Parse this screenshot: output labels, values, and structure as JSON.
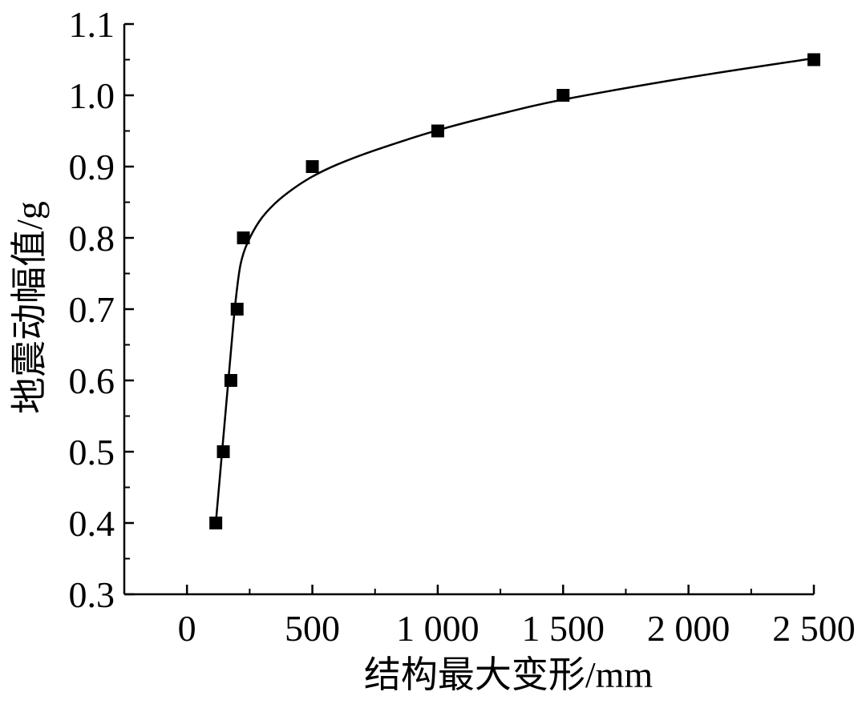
{
  "chart_data": {
    "type": "scatter",
    "title": "",
    "xlabel": "结构最大变形/mm",
    "ylabel": "地震动幅值/g",
    "xlim": [
      -250,
      2500
    ],
    "ylim": [
      0.3,
      1.1
    ],
    "xticks": [
      0,
      500,
      1000,
      1500,
      2000,
      2500
    ],
    "xtick_labels": [
      "0",
      "500",
      "1 000",
      "1 500",
      "2 000",
      "2 500"
    ],
    "yticks": [
      0.3,
      0.4,
      0.5,
      0.6,
      0.7,
      0.8,
      0.9,
      1.0,
      1.1
    ],
    "ytick_labels": [
      "0.3",
      "0.4",
      "0.5",
      "0.6",
      "0.7",
      "0.8",
      "0.9",
      "1.0",
      "1.1"
    ],
    "grid": false,
    "legend": "none",
    "marker": "square",
    "color": "#000000",
    "points": [
      {
        "x": 115,
        "y": 0.4
      },
      {
        "x": 145,
        "y": 0.5
      },
      {
        "x": 175,
        "y": 0.6
      },
      {
        "x": 200,
        "y": 0.7
      },
      {
        "x": 225,
        "y": 0.8
      },
      {
        "x": 500,
        "y": 0.9
      },
      {
        "x": 1000,
        "y": 0.95
      },
      {
        "x": 1500,
        "y": 1.0
      },
      {
        "x": 2500,
        "y": 1.05
      }
    ],
    "fit_curve": [
      [
        115,
        0.4
      ],
      [
        140,
        0.5
      ],
      [
        165,
        0.6
      ],
      [
        185,
        0.68
      ],
      [
        200,
        0.73
      ],
      [
        215,
        0.765
      ],
      [
        240,
        0.792
      ],
      [
        290,
        0.824
      ],
      [
        350,
        0.848
      ],
      [
        420,
        0.868
      ],
      [
        500,
        0.886
      ],
      [
        600,
        0.903
      ],
      [
        750,
        0.923
      ],
      [
        1000,
        0.951
      ],
      [
        1250,
        0.974
      ],
      [
        1500,
        0.994
      ],
      [
        2000,
        1.025
      ],
      [
        2500,
        1.052
      ]
    ]
  }
}
